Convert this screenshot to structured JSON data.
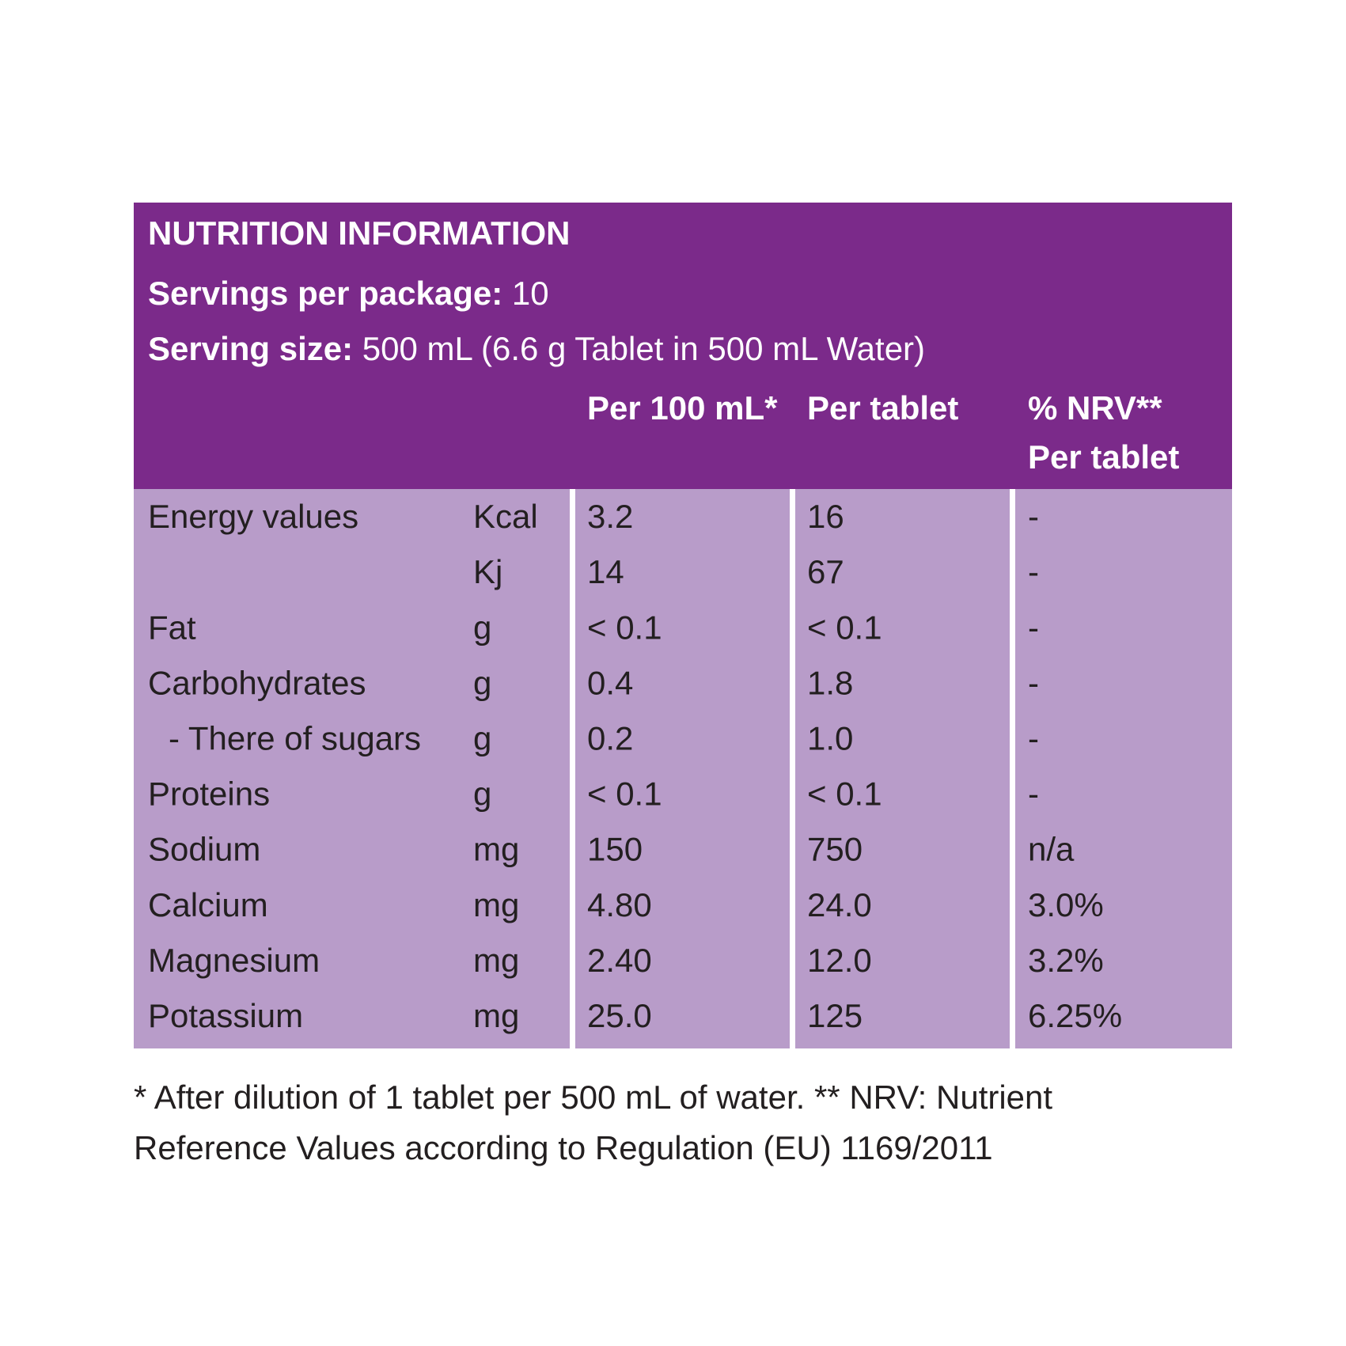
{
  "header": {
    "title": "NUTRITION INFORMATION",
    "servings_label": "Servings per package:",
    "servings_value": "10",
    "size_label": "Serving size:",
    "size_value": "500 mL (6.6 g Tablet in 500 mL Water)",
    "columns": [
      [
        "Per 100 mL*"
      ],
      [
        "Per tablet"
      ],
      [
        "% NRV**",
        "Per tablet"
      ]
    ]
  },
  "table": {
    "rows": [
      [
        "Energy values",
        "Kcal",
        "3.2",
        "16",
        "-"
      ],
      [
        null,
        "Kj",
        "14",
        "67",
        "-"
      ],
      [
        "Fat",
        "g",
        "< 0.1",
        "< 0.1",
        "-"
      ],
      [
        "Carbohydrates",
        "g",
        "0.4",
        "1.8",
        "-"
      ],
      [
        "- There of sugars",
        "g",
        "0.2",
        "1.0",
        "-"
      ],
      [
        "Proteins",
        "g",
        "< 0.1",
        "< 0.1",
        "-"
      ],
      [
        "Sodium",
        "mg",
        "150",
        "750",
        "n/a"
      ],
      [
        "Calcium",
        "mg",
        "4.80",
        "24.0",
        "3.0%"
      ],
      [
        "Magnesium",
        "mg",
        "2.40",
        "12.0",
        "3.2%"
      ],
      [
        "Potassium",
        "mg",
        "25.0",
        "125",
        "6.25%"
      ]
    ]
  },
  "footer": {
    "lines": [
      "* After dilution of 1 tablet per 500 mL of water. ** NRV: Nutrient",
      "Reference Values according to Regulation (EU) 1169/2011"
    ]
  }
}
